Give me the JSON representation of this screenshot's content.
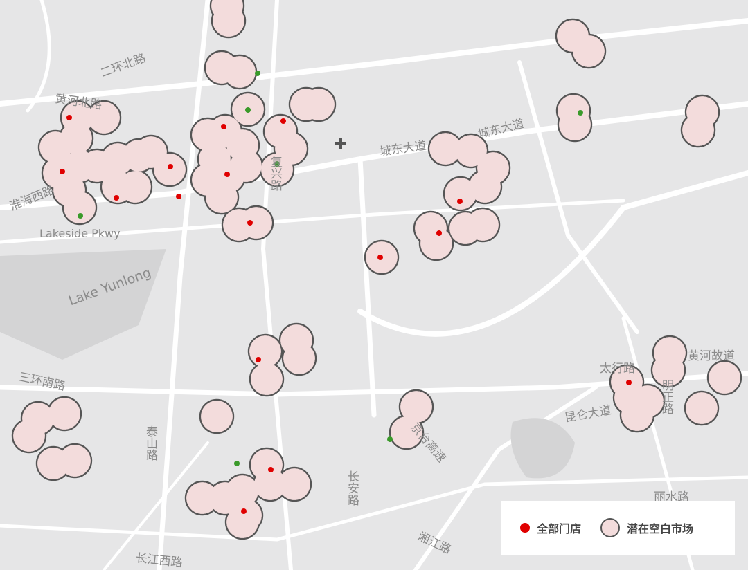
{
  "map": {
    "labels": [
      {
        "text": "二环北路"
      },
      {
        "text": "黄河北路"
      },
      {
        "text": "淮海西路"
      },
      {
        "text": "Lakeside Pkwy"
      },
      {
        "text": "Lake Yunlong"
      },
      {
        "text": "三环南路"
      },
      {
        "text": "城东大道"
      },
      {
        "text": "城东大道"
      },
      {
        "text": "泰山路"
      },
      {
        "text": "长安路"
      },
      {
        "text": "长江西路"
      },
      {
        "text": "湘江路"
      },
      {
        "text": "京台高速"
      },
      {
        "text": "昆仑大道"
      },
      {
        "text": "太行路"
      },
      {
        "text": "明正路"
      },
      {
        "text": "黄河故道"
      },
      {
        "text": "丽水路"
      },
      {
        "text": "复兴路"
      }
    ],
    "colors": {
      "background": "#e6e6e7",
      "road": "#ffffff",
      "store": "#e00000",
      "other_store": "#3a9a2a",
      "market_fill": "#f3dcdc",
      "market_stroke": "#555555"
    }
  },
  "legend": {
    "stores_label": "全部门店",
    "market_label": "潜在空白市场"
  }
}
